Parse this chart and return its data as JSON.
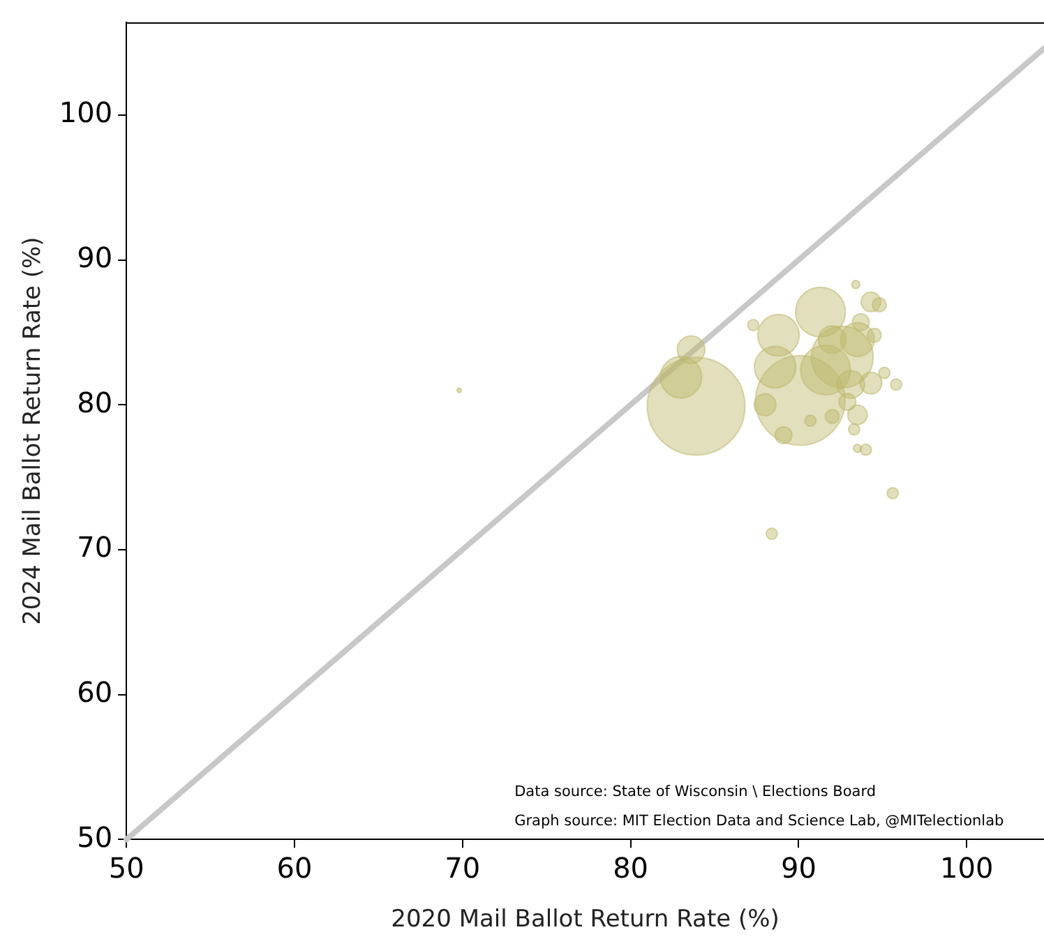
{
  "chart_data": {
    "type": "bubble",
    "xlabel": "2020 Mail Ballot Return Rate (%)",
    "ylabel": "2024 Mail Ballot Return Rate (%)",
    "xlim": [
      50,
      104.6
    ],
    "ylim": [
      50,
      106.4
    ],
    "xticks": [
      50,
      60,
      70,
      80,
      90,
      100
    ],
    "yticks": [
      50,
      60,
      70,
      80,
      90,
      100
    ],
    "grid": false,
    "legend": false,
    "annotations": [
      "Data source: State of Wisconsin \\ Elections Board",
      "Graph source: MIT Election Data and Science Lab, @MITelectionlab"
    ],
    "series": [
      {
        "type": "line",
        "color": "#c8c8c8",
        "x": [
          50,
          104.6
        ],
        "values": [
          50,
          104.6
        ]
      },
      {
        "color": "#bdb76b",
        "x": [
          83.9,
          90.1,
          83.0,
          83.6,
          69.8,
          88.4,
          95.6,
          93.5,
          93.3,
          89.1,
          95.8,
          91.3,
          88.8,
          88.6,
          92.6,
          91.6,
          94.3,
          94.8,
          93.4,
          93.7,
          94.5,
          87.3,
          88.0,
          93.5,
          92.0,
          95.1,
          93.1,
          93.5,
          94.3,
          92.9,
          90.7,
          92.0,
          94.0
        ],
        "values": [
          79.9,
          80.3,
          81.9,
          83.8,
          81.0,
          71.1,
          73.9,
          77.0,
          78.3,
          77.9,
          81.4,
          86.4,
          84.8,
          82.6,
          83.3,
          82.4,
          87.1,
          86.9,
          88.3,
          85.7,
          84.8,
          85.5,
          80.0,
          79.3,
          79.2,
          82.2,
          81.4,
          84.5,
          81.5,
          80.2,
          78.9,
          84.5,
          76.9
        ],
        "sizes": [
          1,
          0.84,
          0.18,
          0.08,
          0.002,
          0.013,
          0.013,
          0.007,
          0.013,
          0.03,
          0.013,
          0.26,
          0.18,
          0.18,
          0.4,
          0.26,
          0.04,
          0.02,
          0.007,
          0.03,
          0.02,
          0.013,
          0.05,
          0.04,
          0.02,
          0.013,
          0.08,
          0.12,
          0.05,
          0.03,
          0.013,
          0.08,
          0.013
        ]
      }
    ]
  }
}
